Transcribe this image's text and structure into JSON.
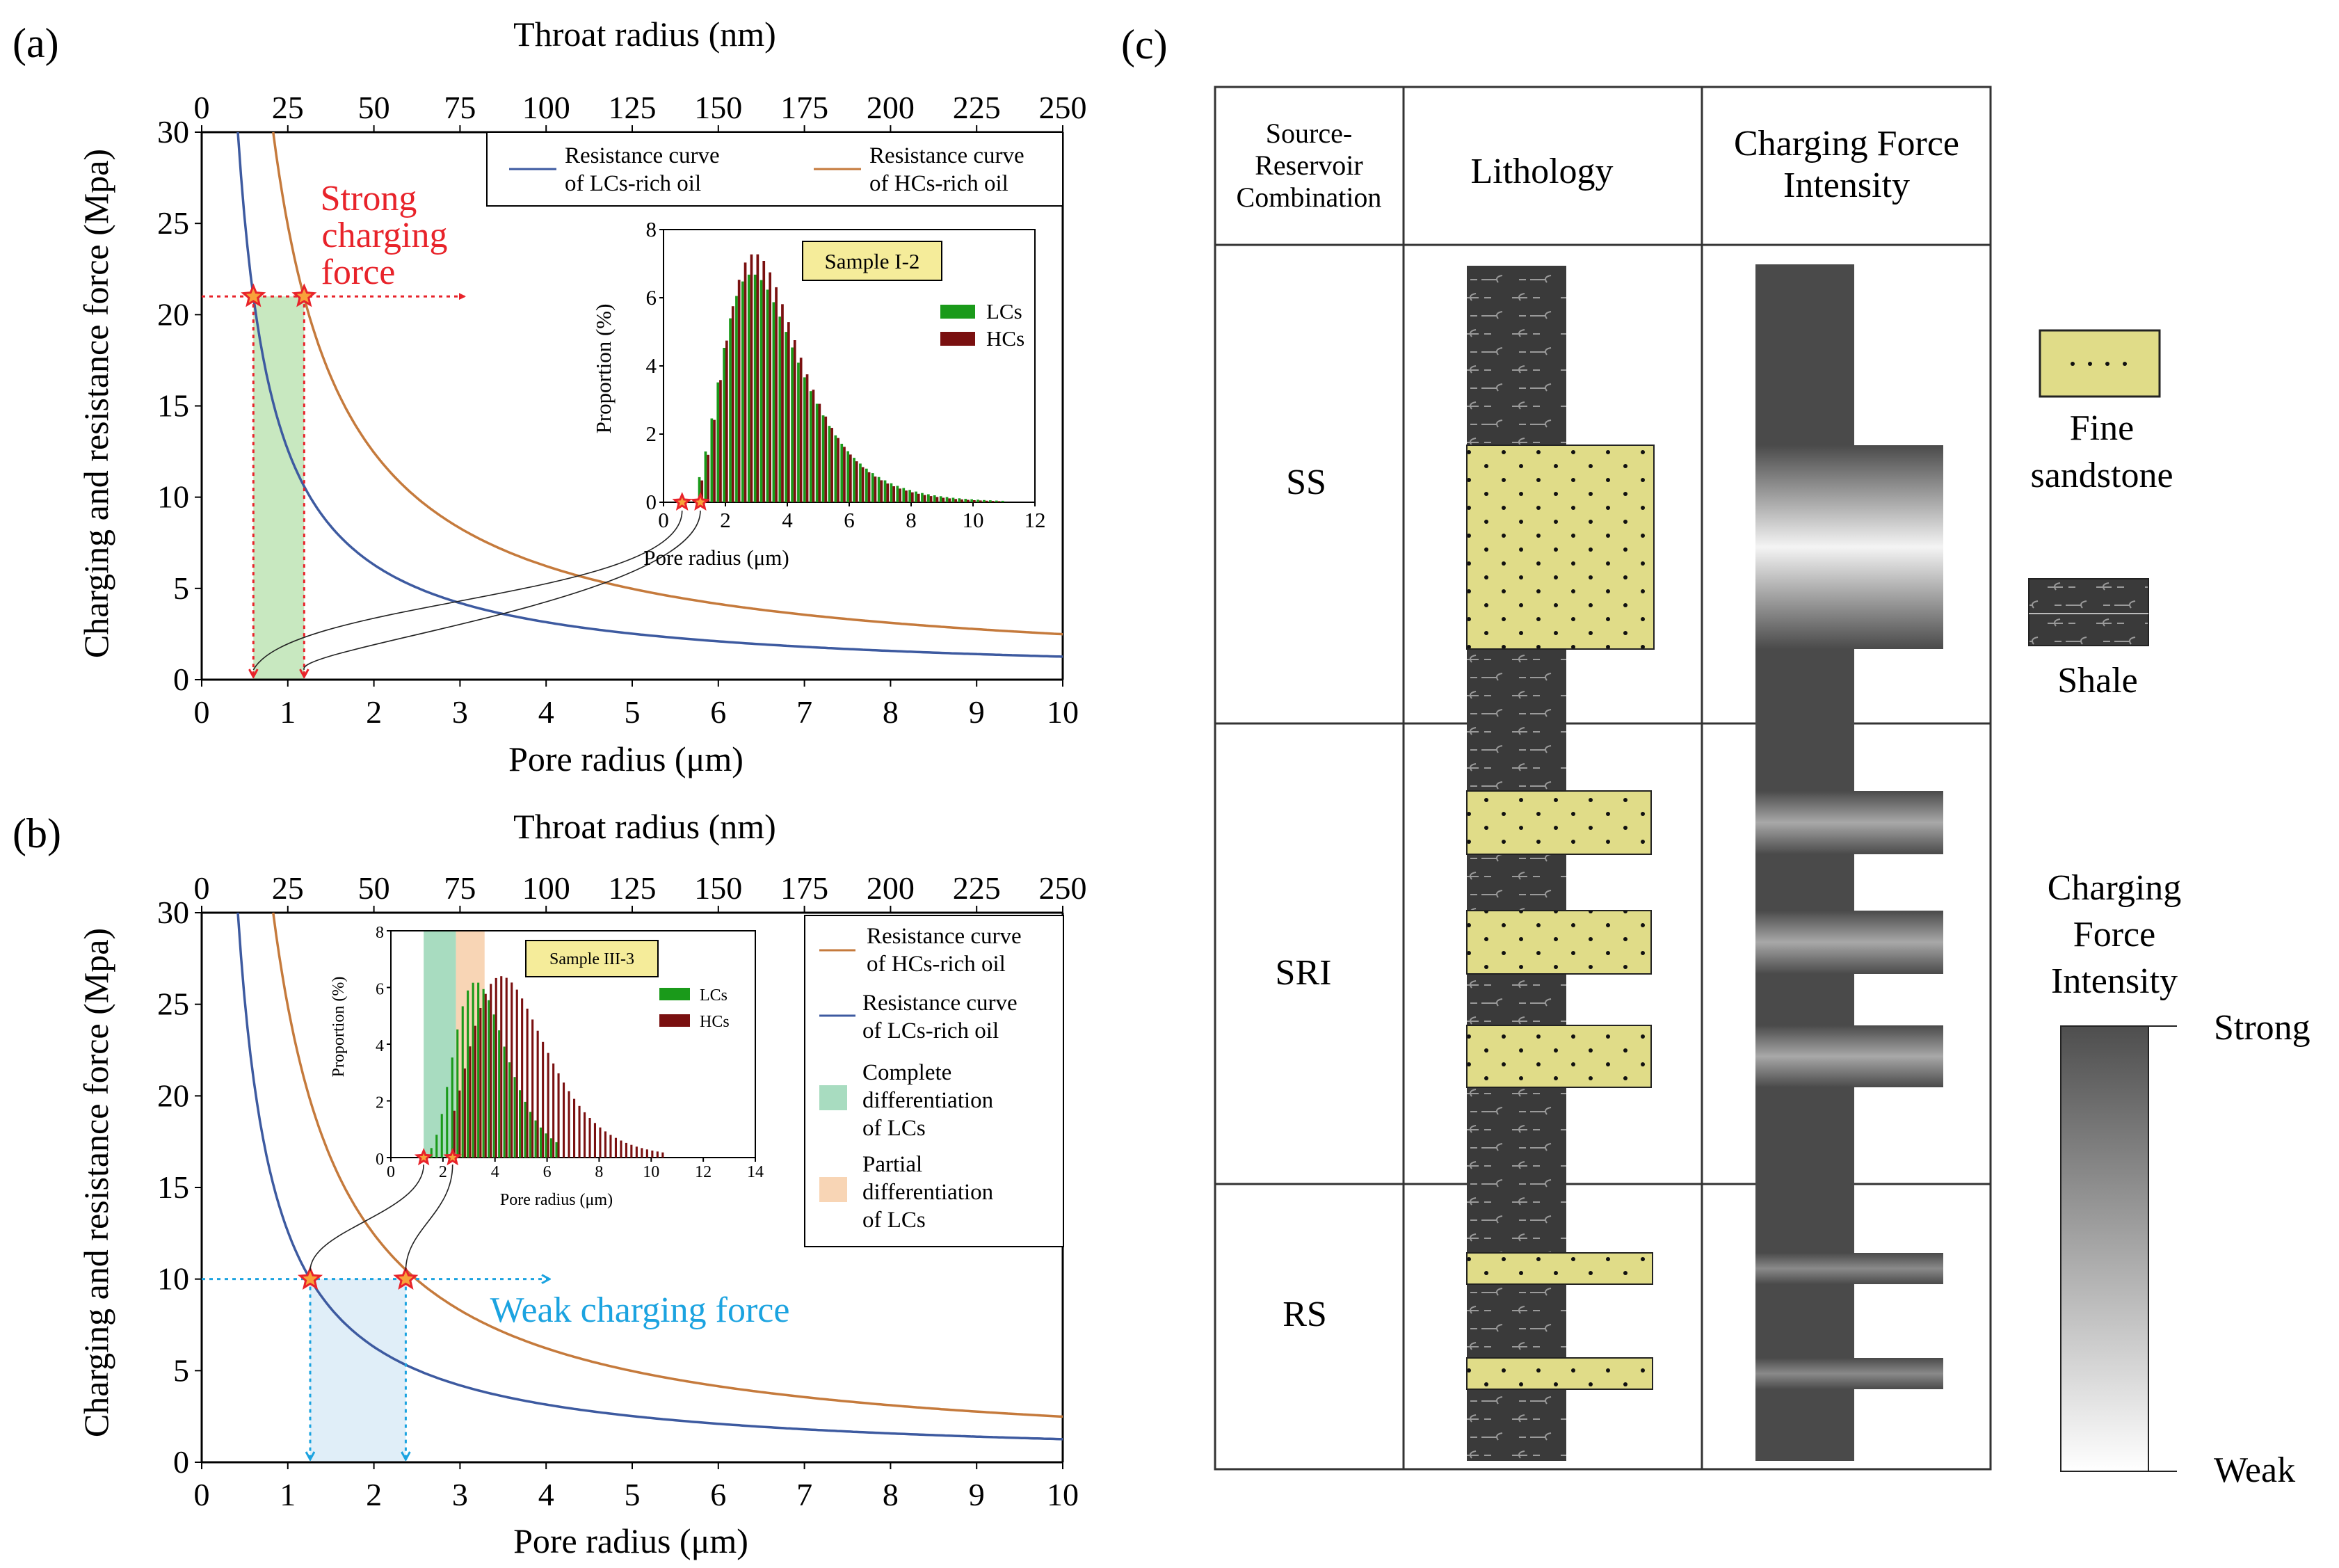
{
  "panels": {
    "a": {
      "label": "(a)",
      "top_axis_label": "Throat radius (nm)",
      "x_axis_label": "Pore radius (μm)",
      "y_axis_label": "Charging and resistance force (Mpa)",
      "annotation": [
        "Strong",
        "charging",
        "force"
      ],
      "legend": [
        {
          "name": "Resistance curve of LCs-rich oil",
          "lines": [
            "Resistance curve",
            "of LCs-rich oil"
          ],
          "color": "#3d5aa0"
        },
        {
          "name": "Resistance curve of HCs-rich oil",
          "lines": [
            "Resistance curve",
            "of HCs-rich oil"
          ],
          "color": "#c57a3c"
        }
      ],
      "inset": {
        "sample": "Sample I-2",
        "xlabel": "Pore radius (μm)",
        "ylabel": "Proportion (%)",
        "legend": [
          "LCs",
          "HCs"
        ]
      }
    },
    "b": {
      "label": "(b)",
      "top_axis_label": "Throat radius (nm)",
      "x_axis_label": "Pore radius (μm)",
      "y_axis_label": "Charging and resistance force (Mpa)",
      "annotation": "Weak charging force",
      "legend": [
        {
          "name": "Resistance curve of HCs-rich oil",
          "lines": [
            "Resistance curve",
            "of HCs-rich oil"
          ],
          "color": "#c57a3c"
        },
        {
          "name": "Resistance curve of LCs-rich oil",
          "lines": [
            "Resistance curve",
            "of LCs-rich oil"
          ],
          "color": "#3d5aa0"
        },
        {
          "name": "Complete differentiation of LCs",
          "lines": [
            "Complete",
            "differentiation",
            "of LCs"
          ],
          "color": "#a8dcc0"
        },
        {
          "name": "Partial differentiation of LCs",
          "lines": [
            "Partial",
            "differentiation",
            "of LCs"
          ],
          "color": "#f8d5b5"
        }
      ],
      "inset": {
        "sample": "Sample III-3",
        "xlabel": "Pore radius (μm)",
        "ylabel": "Proportion (%)",
        "legend": [
          "LCs",
          "HCs"
        ]
      }
    },
    "c": {
      "label": "(c)",
      "headers": {
        "combination": [
          "Source-",
          "Reservoir",
          "Combination"
        ],
        "lithology": "Lithology",
        "intensity": [
          "Charging Force",
          "Intensity"
        ]
      },
      "rows": [
        "SS",
        "SRI",
        "RS"
      ],
      "legend": {
        "sandstone": [
          "Fine",
          "sandstone"
        ],
        "shale": "Shale",
        "scale_title": [
          "Charging",
          "Force",
          "Intensity"
        ],
        "strong": "Strong",
        "weak": "Weak"
      }
    }
  },
  "colors": {
    "lcs_curve": "#3d5aa0",
    "hcs_curve": "#c57a3c",
    "lcs_bar": "#1a9a1a",
    "hcs_bar": "#7a1010",
    "strong_red": "#e8232a",
    "weak_blue": "#1ba3e0",
    "sandstone": "#e0dc88",
    "shale": "#3a3a3a"
  },
  "chart_data": [
    {
      "id": "a-main",
      "type": "line",
      "title": "",
      "xlabel": "Pore radius (μm)",
      "ylabel": "Charging and resistance force (Mpa)",
      "top_xlabel": "Throat radius (nm)",
      "xlim": [
        0,
        10
      ],
      "ylim": [
        0,
        30
      ],
      "top_xlim": [
        0,
        250
      ],
      "x_ticks": [
        0,
        1,
        2,
        3,
        4,
        5,
        6,
        7,
        8,
        9,
        10
      ],
      "y_ticks": [
        0,
        5,
        10,
        15,
        20,
        25,
        30
      ],
      "top_ticks": [
        0,
        25,
        50,
        75,
        100,
        125,
        150,
        175,
        200,
        225,
        250
      ],
      "series": [
        {
          "name": "Resistance curve of LCs-rich oil",
          "formula": "y = 12.6 / x",
          "k": 12.6
        },
        {
          "name": "Resistance curve of HCs-rich oil",
          "formula": "y = 24.9 / x",
          "k": 24.9
        }
      ],
      "charging_force": 21,
      "markers_x": [
        0.6,
        1.19
      ],
      "shaded_x": [
        0.6,
        1.19
      ]
    },
    {
      "id": "a-inset",
      "type": "bar",
      "title": "Sample I-2",
      "xlabel": "Pore radius (μm)",
      "ylabel": "Proportion (%)",
      "xlim": [
        0,
        12
      ],
      "ylim": [
        0,
        8
      ],
      "x_ticks": [
        0,
        2,
        4,
        6,
        8,
        10,
        12
      ],
      "y_ticks": [
        0,
        2,
        4,
        6,
        8
      ],
      "series": [
        {
          "name": "LCs",
          "start": 1.2,
          "end": 11,
          "step": 0.2,
          "mode": 2.9,
          "peak": 6.7
        },
        {
          "name": "HCs",
          "start": 1.2,
          "end": 11,
          "step": 0.2,
          "mode": 2.9,
          "peak": 7.3
        }
      ],
      "markers_x": [
        0.6,
        1.19
      ]
    },
    {
      "id": "b-main",
      "type": "line",
      "title": "",
      "xlabel": "Pore radius (μm)",
      "ylabel": "Charging and resistance force (Mpa)",
      "top_xlabel": "Throat radius (nm)",
      "xlim": [
        0,
        10
      ],
      "ylim": [
        0,
        30
      ],
      "top_xlim": [
        0,
        250
      ],
      "x_ticks": [
        0,
        1,
        2,
        3,
        4,
        5,
        6,
        7,
        8,
        9,
        10
      ],
      "y_ticks": [
        0,
        5,
        10,
        15,
        20,
        25,
        30
      ],
      "top_ticks": [
        0,
        25,
        50,
        75,
        100,
        125,
        150,
        175,
        200,
        225,
        250
      ],
      "series": [
        {
          "name": "Resistance curve of LCs-rich oil",
          "formula": "y = 12.6 / x",
          "k": 12.6
        },
        {
          "name": "Resistance curve of HCs-rich oil",
          "formula": "y = 24.9 / x",
          "k": 24.9
        }
      ],
      "charging_force": 10,
      "markers_x": [
        1.26,
        2.37
      ],
      "shaded_x": [
        1.26,
        2.37
      ]
    },
    {
      "id": "b-inset",
      "type": "bar",
      "title": "Sample III-3",
      "xlabel": "Pore radius (μm)",
      "ylabel": "Proportion (%)",
      "xlim": [
        0,
        14
      ],
      "ylim": [
        0,
        8
      ],
      "x_ticks": [
        0,
        2,
        4,
        6,
        8,
        10,
        12,
        14
      ],
      "y_ticks": [
        0,
        2,
        4,
        6,
        8
      ],
      "series": [
        {
          "name": "LCs",
          "start": 1.4,
          "end": 6.5,
          "step": 0.2,
          "mode": 3.3,
          "peak": 6.2
        },
        {
          "name": "HCs",
          "start": 2.4,
          "end": 10.5,
          "step": 0.2,
          "mode": 4.2,
          "peak": 6.4
        }
      ],
      "bands": [
        {
          "name": "Complete differentiation of LCs",
          "x": [
            1.26,
            2.5
          ]
        },
        {
          "name": "Partial differentiation of LCs",
          "x": [
            2.5,
            3.6
          ]
        }
      ],
      "markers_x": [
        1.26,
        2.37
      ]
    }
  ]
}
